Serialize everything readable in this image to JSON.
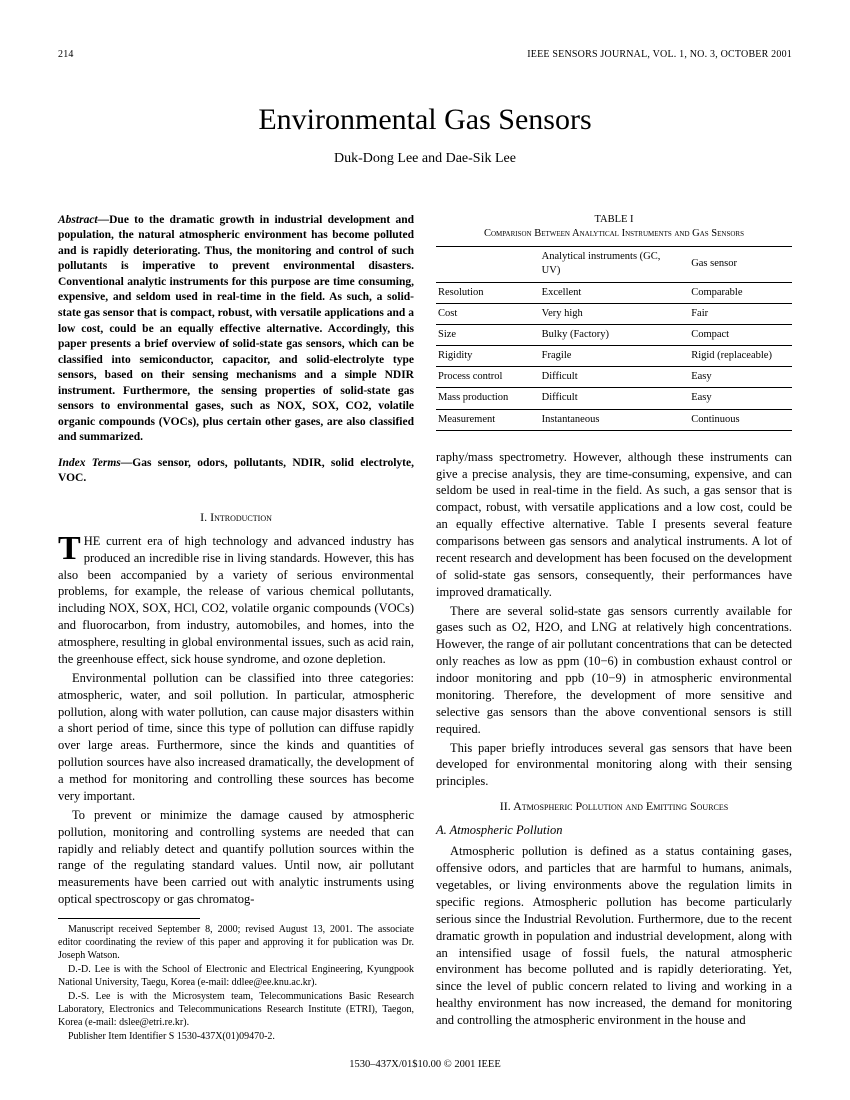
{
  "header": {
    "page_number": "214",
    "journal_info": "IEEE SENSORS JOURNAL, VOL. 1, NO. 3, OCTOBER 2001"
  },
  "title": "Environmental Gas Sensors",
  "authors": "Duk-Dong Lee and Dae-Sik Lee",
  "abstract": {
    "label": "Abstract—",
    "text": "Due to the dramatic growth in industrial development and population, the natural atmospheric environment has become polluted and is rapidly deteriorating. Thus, the monitoring and control of such pollutants is imperative to prevent environmental disasters. Conventional analytic instruments for this purpose are time consuming, expensive, and seldom used in real-time in the field. As such, a solid-state gas sensor that is compact, robust, with versatile applications and a low cost, could be an equally effective alternative. Accordingly, this paper presents a brief overview of solid-state gas sensors, which can be classified into semiconductor, capacitor, and solid-electrolyte type sensors, based on their sensing mechanisms and a simple NDIR instrument. Furthermore, the sensing properties of solid-state gas sensors to environmental gases, such as NOX, SOX, CO2, volatile organic compounds (VOCs), plus certain other gases, are also classified and summarized."
  },
  "index_terms": {
    "label": "Index Terms—",
    "text": "Gas sensor, odors, pollutants, NDIR, solid electrolyte, VOC."
  },
  "sections": {
    "s1": {
      "heading": "I.  Introduction"
    },
    "s2": {
      "heading": "II.  Atmospheric Pollution and Emitting Sources"
    },
    "s2a": {
      "heading": "A. Atmospheric Pollution"
    }
  },
  "paragraphs": {
    "p1_first_rest": "HE current era of high technology and advanced industry has produced an incredible rise in living standards. However, this has also been accompanied by a variety of serious environmental problems, for example, the release of various chemical pollutants, including NOX, SOX, HCl, CO2, volatile organic compounds (VOCs) and fluorocarbon, from industry, automobiles, and homes, into the atmosphere, resulting in global environmental issues, such as acid rain, the greenhouse effect, sick house syndrome, and ozone depletion.",
    "p2": "Environmental pollution can be classified into three categories: atmospheric, water, and soil pollution. In particular, atmospheric pollution, along with water pollution, can cause major disasters within a short period of time, since this type of pollution can diffuse rapidly over large areas. Furthermore, since the kinds and quantities of pollution sources have also increased dramatically, the development of a method for monitoring and controlling these sources has become very important.",
    "p3": "To prevent or minimize the damage caused by atmospheric pollution, monitoring and controlling systems are needed that can rapidly and reliably detect and quantify pollution sources within the range of the regulating standard values. Until now, air pollutant measurements have been carried out with analytic instruments using optical spectroscopy or gas chromatog-",
    "p4": "raphy/mass spectrometry. However, although these instruments can give a precise analysis, they are time-consuming, expensive, and can seldom be used in real-time in the field. As such, a gas sensor that is compact, robust, with versatile applications and a low cost, could be an equally effective alternative. Table I presents several feature comparisons between gas sensors and analytical instruments. A lot of recent research and development has been focused on the development of solid-state gas sensors, consequently, their performances have improved dramatically.",
    "p5": "There are several solid-state gas sensors currently available for gases such as O2, H2O, and LNG at relatively high concentrations. However, the range of air pollutant concentrations that can be detected only reaches as low as ppm (10−6) in combustion exhaust control or indoor monitoring and ppb (10−9) in atmospheric environmental monitoring. Therefore, the development of more sensitive and selective gas sensors than the above conventional sensors is still required.",
    "p6": "This paper briefly introduces several gas sensors that have been developed for environmental monitoring along with their sensing principles.",
    "p7": "Atmospheric pollution is defined as a status containing gases, offensive odors, and particles that are harmful to humans, animals, vegetables, or living environments above the regulation limits in specific regions. Atmospheric pollution has become particularly serious since the Industrial Revolution. Furthermore, due to the recent dramatic growth in population and industrial development, along with an intensified usage of fossil fuels, the natural atmospheric environment has become polluted and is rapidly deteriorating. Yet, since the level of public concern related to living and working in a healthy environment has now increased, the demand for monitoring and controlling the atmospheric environment in the house and"
  },
  "footnotes": {
    "f1": "Manuscript received September 8, 2000; revised August 13, 2001. The associate editor coordinating the review of this paper and approving it for publication was Dr. Joseph Watson.",
    "f2": "D.-D. Lee is with the School of Electronic and Electrical Engineering, Kyungpook National University, Taegu, Korea (e-mail: ddlee@ee.knu.ac.kr).",
    "f3": "D.-S. Lee is with the Microsystem team, Telecommunications Basic Research Laboratory, Electronics and Telecommunications Research Institute (ETRI), Taegon, Korea (e-mail: dslee@etri.re.kr).",
    "f4": "Publisher Item Identifier S 1530-437X(01)09470-2."
  },
  "table": {
    "number": "TABLE  I",
    "caption": "Comparison Between Analytical Instruments and Gas Sensors",
    "columns": [
      "",
      "Analytical instruments (GC, UV)",
      "Gas sensor"
    ],
    "rows": [
      [
        "Resolution",
        "Excellent",
        "Comparable"
      ],
      [
        "Cost",
        "Very high",
        "Fair"
      ],
      [
        "Size",
        "Bulky (Factory)",
        "Compact"
      ],
      [
        "Rigidity",
        "Fragile",
        "Rigid (replaceable)"
      ],
      [
        "Process control",
        "Difficult",
        "Easy"
      ],
      [
        "Mass production",
        "Difficult",
        "Easy"
      ],
      [
        "Measurement",
        "Instantaneous",
        "Continuous"
      ]
    ],
    "col_widths": [
      "28%",
      "42%",
      "30%"
    ]
  },
  "footer": "1530–437X/01$10.00 © 2001 IEEE"
}
